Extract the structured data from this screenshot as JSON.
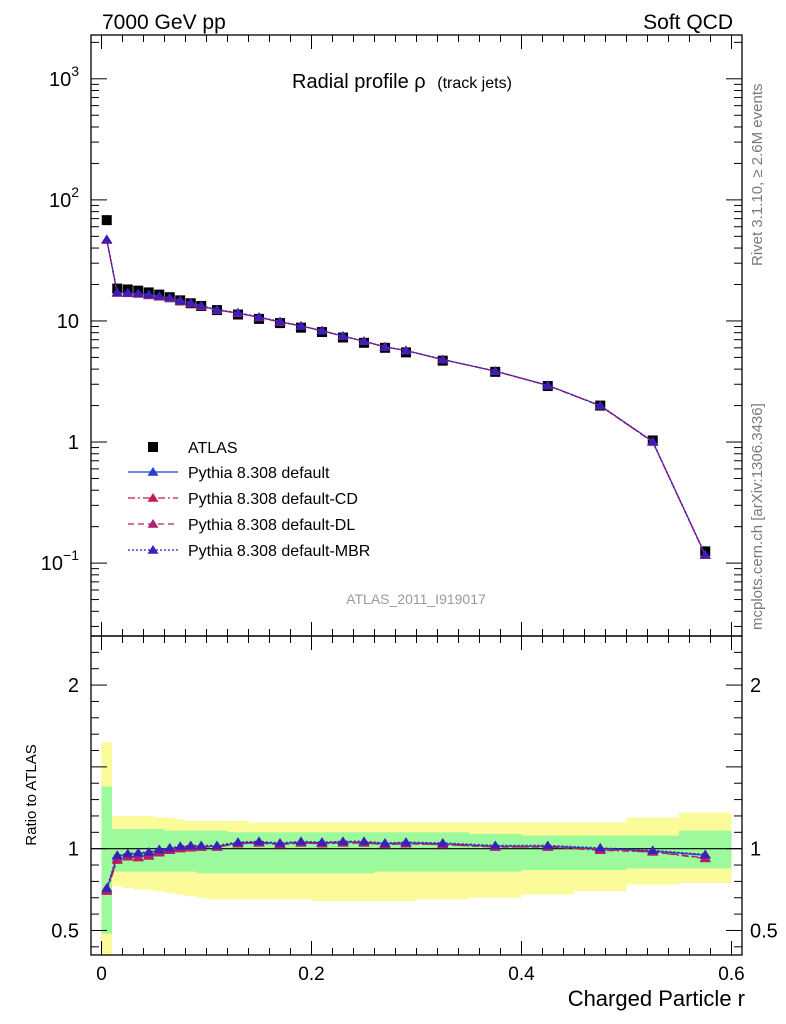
{
  "header": {
    "energy_label": "7000 GeV pp",
    "group_label": "Soft QCD",
    "title_main": "Radial profile ρ",
    "title_sub": "(track jets)",
    "side_rivet": "Rivet 3.1.10, ≥ 2.6M events",
    "side_mcplots": "mcplots.cern.ch [arXiv:1306.3436]",
    "analysis_id": "ATLAS_2011_I919017"
  },
  "chart_data": {
    "type": "scatter",
    "xlabel": "Charged Particle r",
    "ylabel_ratio": "Ratio to ATLAS",
    "xlim": [
      -0.01,
      0.61
    ],
    "ylim_main": [
      0.025,
      2300
    ],
    "ylim_ratio": [
      0.35,
      2.3
    ],
    "yscale_main": "log",
    "x_ticks": [
      "0",
      "0.2",
      "0.4",
      "0.6"
    ],
    "x_tick_values": [
      0,
      0.2,
      0.4,
      0.6
    ],
    "y_ticks_main": [
      "10^-1",
      "1",
      "10",
      "10^2",
      "10^3"
    ],
    "y_tick_values_main": [
      0.1,
      1,
      10,
      100,
      1000
    ],
    "y_ticks_ratio": [
      "0.5",
      "1",
      "2"
    ],
    "y_tick_values_ratio": [
      0.5,
      1,
      2
    ],
    "legend_position": "lower-left",
    "colors": {
      "atlas": "#000000",
      "default": "#1f3fd6",
      "cd": "#c01c52",
      "dl": "#b0206e",
      "mbr": "#3a1fb8",
      "band_inner": "#9cf99c",
      "band_outer": "#fbfb9a"
    },
    "x": [
      0.005,
      0.015,
      0.025,
      0.035,
      0.045,
      0.055,
      0.065,
      0.075,
      0.085,
      0.095,
      0.11,
      0.13,
      0.15,
      0.17,
      0.19,
      0.21,
      0.23,
      0.25,
      0.27,
      0.29,
      0.325,
      0.375,
      0.425,
      0.475,
      0.525,
      0.575
    ],
    "x_bins": [
      [
        0,
        0.01
      ],
      [
        0.01,
        0.02
      ],
      [
        0.02,
        0.03
      ],
      [
        0.03,
        0.04
      ],
      [
        0.04,
        0.05
      ],
      [
        0.05,
        0.06
      ],
      [
        0.06,
        0.07
      ],
      [
        0.07,
        0.08
      ],
      [
        0.08,
        0.09
      ],
      [
        0.09,
        0.1
      ],
      [
        0.1,
        0.12
      ],
      [
        0.12,
        0.14
      ],
      [
        0.14,
        0.16
      ],
      [
        0.16,
        0.18
      ],
      [
        0.18,
        0.2
      ],
      [
        0.2,
        0.22
      ],
      [
        0.22,
        0.24
      ],
      [
        0.24,
        0.26
      ],
      [
        0.26,
        0.28
      ],
      [
        0.28,
        0.3
      ],
      [
        0.3,
        0.35
      ],
      [
        0.35,
        0.4
      ],
      [
        0.4,
        0.45
      ],
      [
        0.45,
        0.5
      ],
      [
        0.5,
        0.55
      ],
      [
        0.55,
        0.6
      ]
    ],
    "series": [
      {
        "name": "ATLAS",
        "style": "data",
        "values": [
          68,
          18.5,
          18.2,
          17.8,
          17.2,
          16.5,
          15.7,
          14.8,
          14.0,
          13.3,
          12.3,
          11.3,
          10.4,
          9.6,
          8.8,
          8.1,
          7.3,
          6.6,
          6.0,
          5.5,
          4.7,
          3.8,
          2.9,
          2.0,
          1.03,
          0.125
        ],
        "ratio_band_inner": [
          [
            0.48,
            1.38
          ],
          [
            0.86,
            1.12
          ],
          [
            0.86,
            1.12
          ],
          [
            0.86,
            1.12
          ],
          [
            0.86,
            1.12
          ],
          [
            0.86,
            1.12
          ],
          [
            0.86,
            1.11
          ],
          [
            0.86,
            1.11
          ],
          [
            0.86,
            1.11
          ],
          [
            0.85,
            1.11
          ],
          [
            0.85,
            1.11
          ],
          [
            0.85,
            1.1
          ],
          [
            0.85,
            1.1
          ],
          [
            0.85,
            1.1
          ],
          [
            0.85,
            1.1
          ],
          [
            0.85,
            1.1
          ],
          [
            0.85,
            1.1
          ],
          [
            0.85,
            1.1
          ],
          [
            0.86,
            1.1
          ],
          [
            0.86,
            1.1
          ],
          [
            0.86,
            1.1
          ],
          [
            0.86,
            1.09
          ],
          [
            0.87,
            1.08
          ],
          [
            0.87,
            1.08
          ],
          [
            0.88,
            1.08
          ],
          [
            0.88,
            1.11
          ]
        ],
        "ratio_band_outer": [
          [
            0.35,
            1.65
          ],
          [
            0.77,
            1.2
          ],
          [
            0.76,
            1.2
          ],
          [
            0.75,
            1.2
          ],
          [
            0.75,
            1.2
          ],
          [
            0.74,
            1.19
          ],
          [
            0.73,
            1.19
          ],
          [
            0.72,
            1.18
          ],
          [
            0.71,
            1.17
          ],
          [
            0.7,
            1.17
          ],
          [
            0.69,
            1.17
          ],
          [
            0.69,
            1.17
          ],
          [
            0.69,
            1.16
          ],
          [
            0.69,
            1.16
          ],
          [
            0.69,
            1.16
          ],
          [
            0.68,
            1.16
          ],
          [
            0.68,
            1.16
          ],
          [
            0.68,
            1.16
          ],
          [
            0.68,
            1.16
          ],
          [
            0.68,
            1.16
          ],
          [
            0.69,
            1.16
          ],
          [
            0.7,
            1.16
          ],
          [
            0.72,
            1.16
          ],
          [
            0.74,
            1.16
          ],
          [
            0.78,
            1.19
          ],
          [
            0.79,
            1.22
          ]
        ]
      },
      {
        "name": "Pythia 8.308 default",
        "style": "solid",
        "color_key": "default",
        "values": [
          47,
          17.1,
          17.1,
          16.9,
          16.5,
          16.0,
          15.5,
          14.7,
          14.0,
          13.3,
          12.3,
          11.6,
          10.7,
          9.8,
          9.1,
          8.3,
          7.5,
          6.8,
          6.1,
          5.7,
          4.8,
          3.85,
          2.94,
          2.0,
          1.01,
          0.117
        ],
        "ratio": [
          0.75,
          0.955,
          0.965,
          0.97,
          0.975,
          0.99,
          1.0,
          1.01,
          1.015,
          1.015,
          1.015,
          1.035,
          1.04,
          1.03,
          1.04,
          1.035,
          1.04,
          1.04,
          1.03,
          1.035,
          1.03,
          1.015,
          1.015,
          1.0,
          0.985,
          0.96
        ]
      },
      {
        "name": "Pythia 8.308 default-CD",
        "style": "dashdot",
        "color_key": "cd",
        "values": [
          46.5,
          17.0,
          16.9,
          16.7,
          16.2,
          15.8,
          15.4,
          14.6,
          13.9,
          13.2,
          12.3,
          11.6,
          10.7,
          9.8,
          9.1,
          8.3,
          7.5,
          6.8,
          6.1,
          5.7,
          4.8,
          3.85,
          2.93,
          1.99,
          1.0,
          0.116
        ],
        "ratio": [
          0.74,
          0.93,
          0.95,
          0.945,
          0.955,
          0.975,
          0.99,
          1.0,
          1.005,
          1.01,
          1.01,
          1.03,
          1.035,
          1.025,
          1.035,
          1.03,
          1.035,
          1.035,
          1.025,
          1.03,
          1.025,
          1.01,
          1.01,
          0.99,
          0.98,
          0.94
        ]
      },
      {
        "name": "Pythia 8.308 default-DL",
        "style": "dashed",
        "color_key": "dl",
        "values": [
          46.8,
          17.0,
          17.0,
          16.8,
          16.3,
          15.9,
          15.5,
          14.7,
          14.0,
          13.3,
          12.3,
          11.6,
          10.7,
          9.8,
          9.1,
          8.3,
          7.5,
          6.8,
          6.1,
          5.7,
          4.8,
          3.85,
          2.93,
          1.99,
          1.0,
          0.116
        ],
        "ratio": [
          0.745,
          0.94,
          0.955,
          0.95,
          0.96,
          0.98,
          0.995,
          1.005,
          1.01,
          1.01,
          1.01,
          1.03,
          1.035,
          1.025,
          1.035,
          1.03,
          1.035,
          1.035,
          1.025,
          1.03,
          1.025,
          1.01,
          1.01,
          0.995,
          0.98,
          0.945
        ]
      },
      {
        "name": "Pythia 8.308 default-MBR",
        "style": "dotted",
        "color_key": "mbr",
        "values": [
          47.2,
          17.2,
          17.1,
          16.9,
          16.5,
          16.1,
          15.6,
          14.8,
          14.1,
          13.4,
          12.4,
          11.7,
          10.8,
          9.9,
          9.1,
          8.3,
          7.5,
          6.8,
          6.1,
          5.7,
          4.8,
          3.85,
          2.94,
          2.0,
          1.01,
          0.117
        ],
        "ratio": [
          0.76,
          0.96,
          0.97,
          0.975,
          0.98,
          0.995,
          1.005,
          1.015,
          1.02,
          1.02,
          1.02,
          1.04,
          1.045,
          1.035,
          1.045,
          1.04,
          1.045,
          1.045,
          1.035,
          1.04,
          1.035,
          1.02,
          1.02,
          1.005,
          0.99,
          0.965
        ]
      }
    ]
  }
}
